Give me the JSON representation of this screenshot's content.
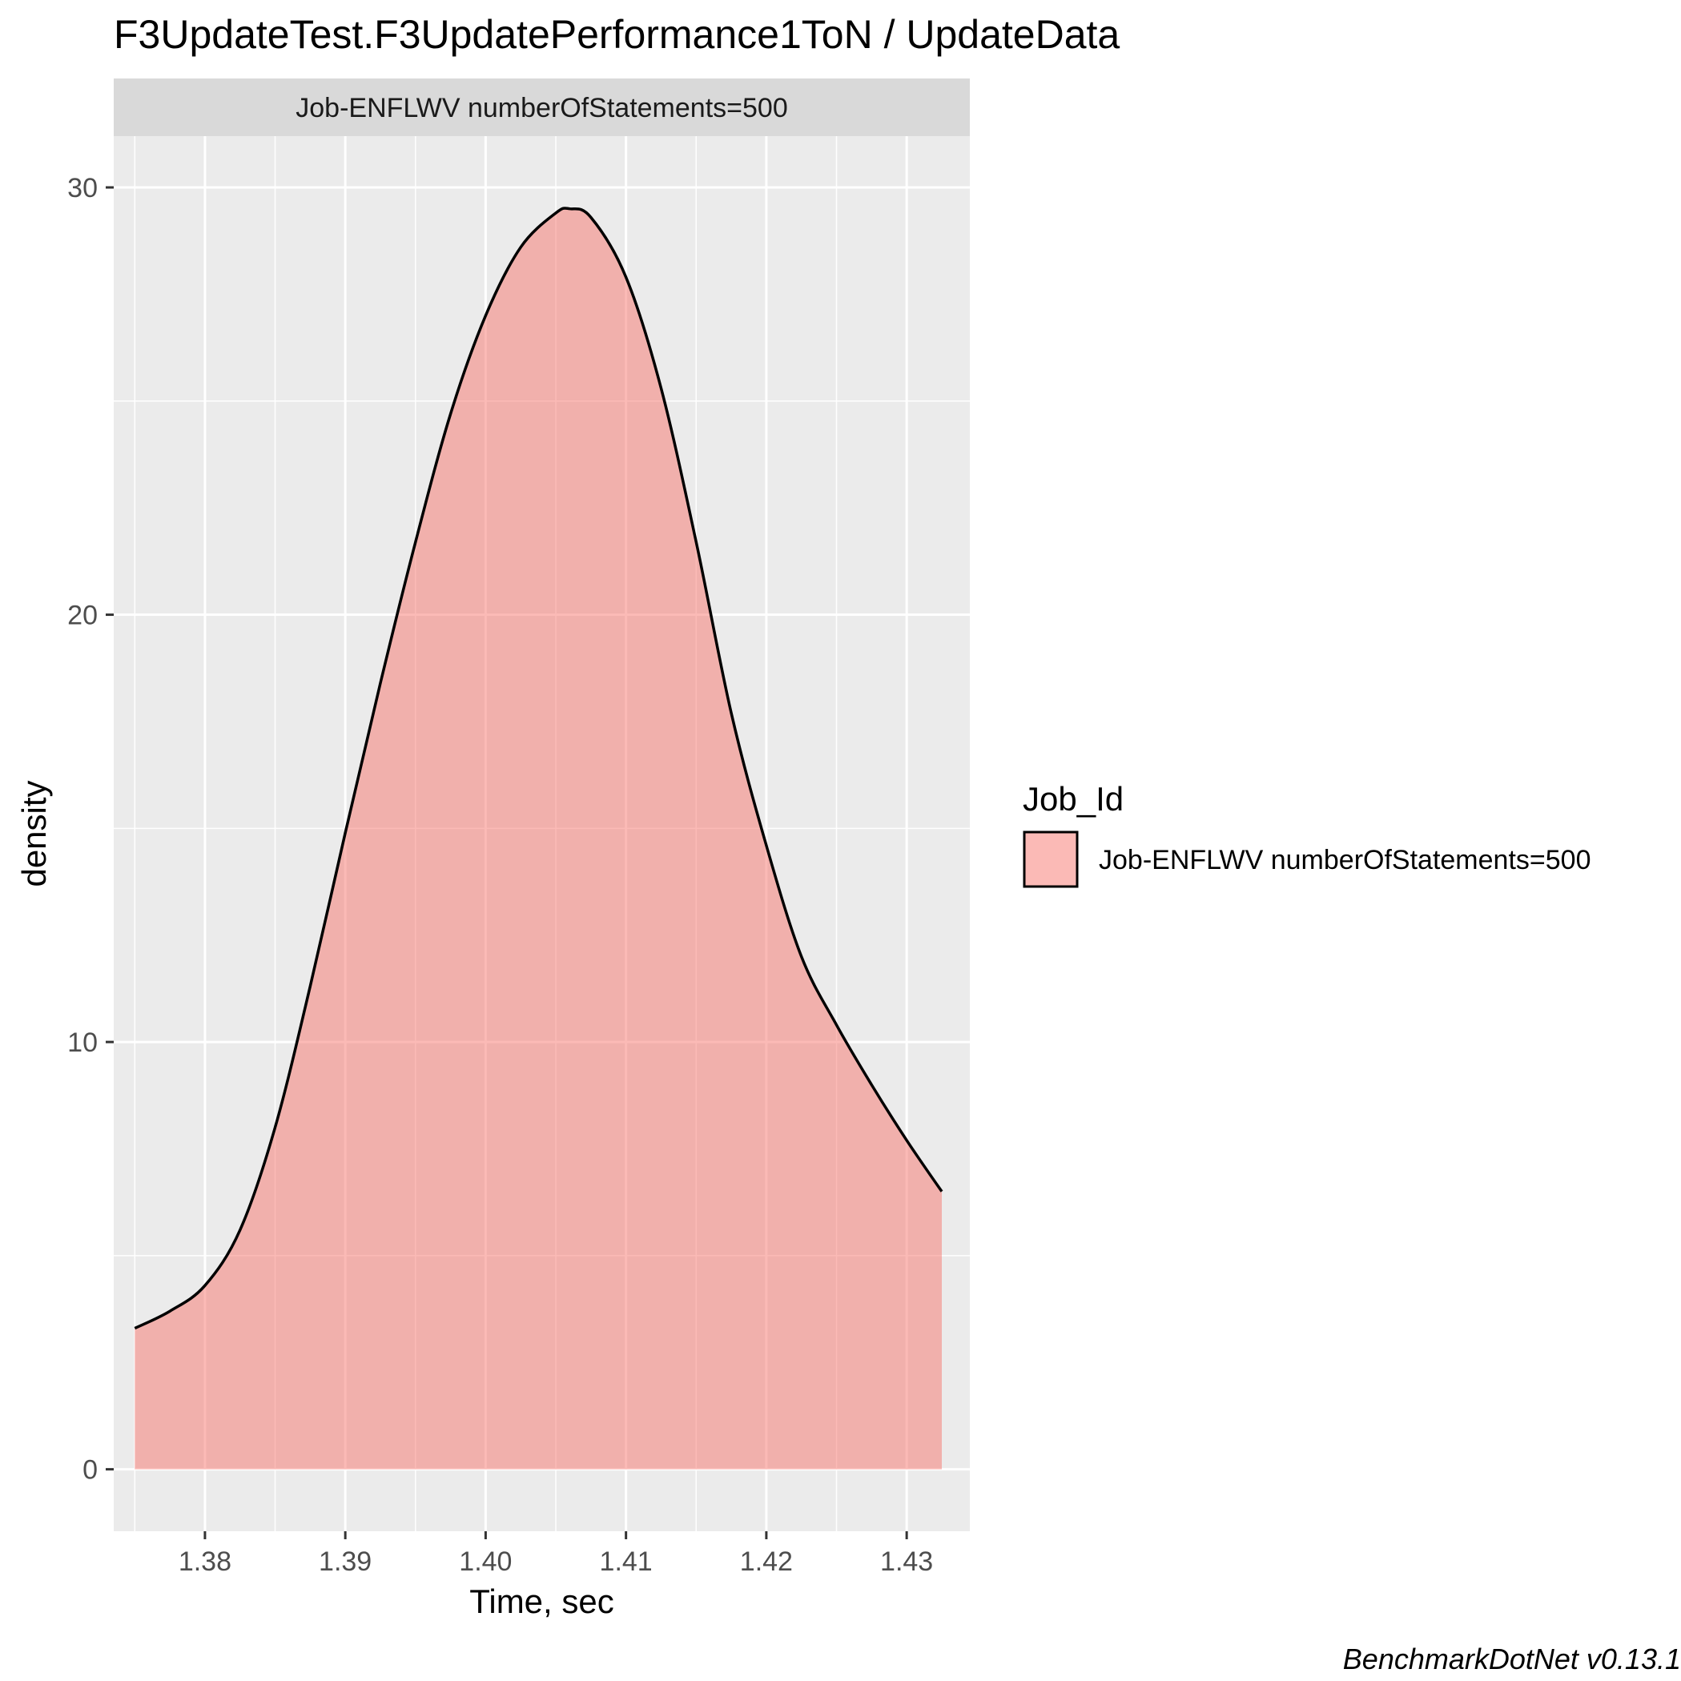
{
  "chart_data": {
    "type": "area",
    "title": "F3UpdateTest.F3UpdatePerformance1ToN / UpdateData",
    "facet_label": "Job-ENFLWV numberOfStatements=500",
    "xlabel": "Time, sec",
    "ylabel": "density",
    "xlim": [
      1.3735,
      1.4345
    ],
    "ylim": [
      -1.45,
      31.2
    ],
    "x_ticks": [
      1.38,
      1.39,
      1.4,
      1.41,
      1.42,
      1.43
    ],
    "x_tick_labels": [
      "1.38",
      "1.39",
      "1.40",
      "1.41",
      "1.42",
      "1.43"
    ],
    "y_ticks": [
      0,
      10,
      20,
      30
    ],
    "y_tick_labels": [
      "0",
      "10",
      "20",
      "30"
    ],
    "grid": true,
    "legend": {
      "title": "Job_Id",
      "placement": "right",
      "entries": [
        "Job-ENFLWV numberOfStatements=500"
      ]
    },
    "series": [
      {
        "name": "Job-ENFLWV numberOfStatements=500",
        "fill_color": "#F8766D",
        "x": [
          1.375,
          1.3775,
          1.38,
          1.3825,
          1.385,
          1.3875,
          1.39,
          1.3925,
          1.395,
          1.3975,
          1.4,
          1.4025,
          1.405,
          1.406,
          1.4075,
          1.41,
          1.4125,
          1.415,
          1.4175,
          1.42,
          1.4225,
          1.425,
          1.4275,
          1.43,
          1.4325
        ],
        "y": [
          3.3,
          3.7,
          4.3,
          5.6,
          8.0,
          11.3,
          14.9,
          18.4,
          21.7,
          24.7,
          27.0,
          28.6,
          29.4,
          29.5,
          29.3,
          27.9,
          25.3,
          21.7,
          17.7,
          14.6,
          12.0,
          10.4,
          9.0,
          7.7,
          6.5
        ]
      }
    ]
  },
  "caption": "BenchmarkDotNet v0.13.1"
}
